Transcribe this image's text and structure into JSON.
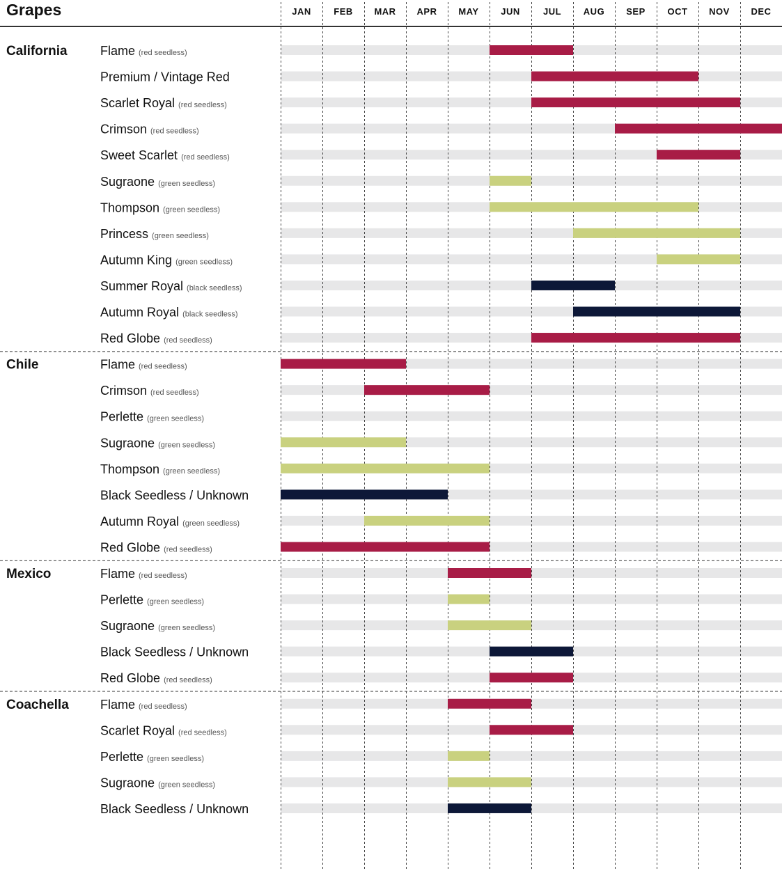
{
  "title": "Grapes",
  "months": [
    "JAN",
    "FEB",
    "MAR",
    "APR",
    "MAY",
    "JUN",
    "JUL",
    "AUG",
    "SEP",
    "OCT",
    "NOV",
    "DEC"
  ],
  "colors": {
    "red": "#A81C46",
    "green": "#C9D17F",
    "black": "#0D1838",
    "track": "#E7E7E8",
    "rule": "#333333"
  },
  "chart_data": {
    "type": "gantt",
    "title": "Grapes",
    "x_axis": [
      "JAN",
      "FEB",
      "MAR",
      "APR",
      "MAY",
      "JUN",
      "JUL",
      "AUG",
      "SEP",
      "OCT",
      "NOV",
      "DEC"
    ],
    "regions": [
      {
        "name": "California",
        "rows": [
          {
            "name": "Flame",
            "note": "(red seedless)",
            "color": "red",
            "start": 6,
            "end": 7
          },
          {
            "name": "Premium / Vintage Red",
            "note": "",
            "color": "red",
            "start": 7,
            "end": 10
          },
          {
            "name": "Scarlet Royal",
            "note": "(red seedless)",
            "color": "red",
            "start": 7,
            "end": 11
          },
          {
            "name": "Crimson",
            "note": "(red seedless)",
            "color": "red",
            "start": 9,
            "end": 12
          },
          {
            "name": "Sweet Scarlet",
            "note": "(red seedless)",
            "color": "red",
            "start": 10,
            "end": 11
          },
          {
            "name": "Sugraone",
            "note": "(green seedless)",
            "color": "green",
            "start": 6,
            "end": 6
          },
          {
            "name": "Thompson",
            "note": "(green seedless)",
            "color": "green",
            "start": 6,
            "end": 10
          },
          {
            "name": "Princess",
            "note": "(green seedless)",
            "color": "green",
            "start": 8,
            "end": 11
          },
          {
            "name": "Autumn King",
            "note": "(green seedless)",
            "color": "green",
            "start": 10,
            "end": 11
          },
          {
            "name": "Summer Royal",
            "note": "(black seedless)",
            "color": "black",
            "start": 7,
            "end": 8
          },
          {
            "name": "Autumn Royal",
            "note": "(black seedless)",
            "color": "black",
            "start": 8,
            "end": 11
          },
          {
            "name": "Red Globe",
            "note": "(red seedless)",
            "color": "red",
            "start": 7,
            "end": 11
          }
        ]
      },
      {
        "name": "Chile",
        "rows": [
          {
            "name": "Flame",
            "note": "(red seedless)",
            "color": "red",
            "start": 1,
            "end": 3
          },
          {
            "name": "Crimson",
            "note": "(red seedless)",
            "color": "red",
            "start": 3,
            "end": 5
          },
          {
            "name": "Perlette",
            "note": "(green seedless)",
            "color": "green",
            "start": null,
            "end": null
          },
          {
            "name": "Sugraone",
            "note": "(green seedless)",
            "color": "green",
            "start": 1,
            "end": 3
          },
          {
            "name": "Thompson",
            "note": "(green seedless)",
            "color": "green",
            "start": 1,
            "end": 5
          },
          {
            "name": "Black Seedless / Unknown",
            "note": "",
            "color": "black",
            "start": 1,
            "end": 4
          },
          {
            "name": "Autumn Royal",
            "note": "(green seedless)",
            "color": "green",
            "start": 3,
            "end": 5
          },
          {
            "name": "Red Globe",
            "note": "(red seedless)",
            "color": "red",
            "start": 1,
            "end": 5
          }
        ]
      },
      {
        "name": "Mexico",
        "rows": [
          {
            "name": "Flame",
            "note": "(red seedless)",
            "color": "red",
            "start": 5,
            "end": 6
          },
          {
            "name": "Perlette",
            "note": "(green seedless)",
            "color": "green",
            "start": 5,
            "end": 5
          },
          {
            "name": "Sugraone",
            "note": "(green seedless)",
            "color": "green",
            "start": 5,
            "end": 6
          },
          {
            "name": "Black Seedless / Unknown",
            "note": "",
            "color": "black",
            "start": 6,
            "end": 7
          },
          {
            "name": "Red Globe",
            "note": "(red seedless)",
            "color": "red",
            "start": 6,
            "end": 7
          }
        ]
      },
      {
        "name": "Coachella",
        "rows": [
          {
            "name": "Flame",
            "note": "(red seedless)",
            "color": "red",
            "start": 5,
            "end": 6
          },
          {
            "name": "Scarlet Royal",
            "note": "(red seedless)",
            "color": "red",
            "start": 6,
            "end": 7
          },
          {
            "name": "Perlette",
            "note": "(green seedless)",
            "color": "green",
            "start": 5,
            "end": 5
          },
          {
            "name": "Sugraone",
            "note": "(green seedless)",
            "color": "green",
            "start": 5,
            "end": 6
          },
          {
            "name": "Black Seedless / Unknown",
            "note": "",
            "color": "black",
            "start": 5,
            "end": 6
          }
        ]
      }
    ]
  }
}
